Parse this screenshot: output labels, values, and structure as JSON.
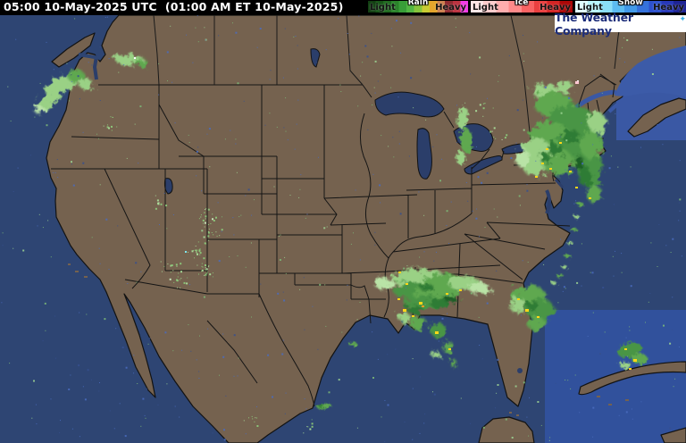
{
  "header": {
    "timestamp": "05:00 10-May-2025 UTC  (01:00 AM ET 10-May-2025)"
  },
  "legend": {
    "bars": [
      {
        "name": "Rain",
        "light_label": "Light",
        "heavy_label": "Heavy",
        "colors": [
          "#123f12",
          "#175417",
          "#1f6a1f",
          "#2a832a",
          "#389e38",
          "#52b643",
          "#86c43c",
          "#c9cc32",
          "#e3a52c",
          "#cc8150",
          "#8f2a30",
          "#bb3340",
          "#f23ce6"
        ]
      },
      {
        "name": "Ice",
        "light_label": "Light",
        "heavy_label": "Heavy",
        "colors": [
          "#ffe6e6",
          "#ffcccc",
          "#ffadad",
          "#ff8a8a",
          "#f86363",
          "#ea4040",
          "#d32424",
          "#ab0707"
        ]
      },
      {
        "name": "Snow",
        "light_label": "Light",
        "heavy_label": "Heavy",
        "colors": [
          "#e0ffff",
          "#b8f6fd",
          "#8adef8",
          "#5cbcf1",
          "#429ae9",
          "#3572dc",
          "#2d51cd",
          "#2637b8",
          "#1d2394"
        ]
      }
    ]
  },
  "branding": {
    "logo_text": "The Weather Company",
    "logo_mark": "✦"
  },
  "map": {
    "description": "Composite weather radar — contiguous United States",
    "colors": {
      "land": "#75624f",
      "ocean": "#2e4573",
      "ocean_bright": "#3c5ba8",
      "lakes": "#2b3e6a",
      "boundaries": "#151515",
      "rain_light": "#9ad185",
      "rain_moderate": "#4f9c46",
      "rain_heavy_core": "#ffd718",
      "ice_pixel": "#ffc6d2"
    },
    "radar_areas": [
      "Pacific Northwest coast",
      "Idaho–Montana panhandle",
      "Upper Great Lakes",
      "New York–New England with offshore band",
      "Colorado–New Mexico scattered",
      "Central Gulf Coast (LA–MS–AL–FL panhandle)",
      "Southeast coast offshore (GA–SC)",
      "Western Cuba"
    ]
  }
}
